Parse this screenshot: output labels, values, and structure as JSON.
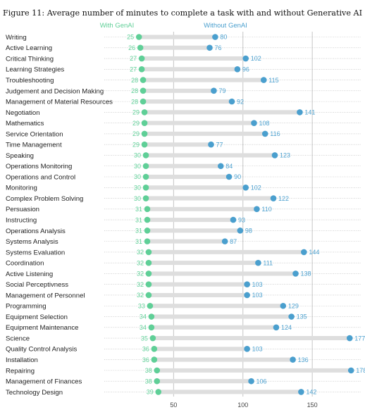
{
  "title": "Figure 11: Average number of minutes to complete a task with and without Generative AI",
  "colors": {
    "with_genai": "#5fcf97",
    "without_genai": "#4a9fce",
    "bar": "#dedede",
    "grid": "#c4c4c4"
  },
  "chart_data": {
    "type": "dumbbell",
    "title": "Figure 11: Average number of minutes to complete a task with and without Generative AI",
    "xlabel": "",
    "ylabel": "",
    "xlim": [
      0,
      185
    ],
    "xticks": [
      50,
      100,
      150
    ],
    "grid": true,
    "legend": "top",
    "categories": [
      "Writing",
      "Active Learning",
      "Critical Thinking",
      "Learning Strategies",
      "Troubleshooting",
      "Judgement and Decision Making",
      "Management of Material Resources",
      "Negotiation",
      "Mathematics",
      "Service Orientation",
      "Time Management",
      "Speaking",
      "Operations Monitoring",
      "Operations and Control",
      "Monitoring",
      "Complex Problem Solving",
      "Persuasion",
      "Instructing",
      "Operations Analysis",
      "Systems Analysis",
      "Systems Evaluation",
      "Coordination",
      "Active Listening",
      "Social Perceptivness",
      "Management of Personnel",
      "Programming",
      "Equipment Selection",
      "Equipment Maintenance",
      "Science",
      "Quality Control Analysis",
      "Installation",
      "Repairing",
      "Management of Finances",
      "Technology Design"
    ],
    "series": [
      {
        "name": "With GenAI",
        "values": [
          25,
          26,
          27,
          27,
          28,
          28,
          28,
          29,
          29,
          29,
          29,
          30,
          30,
          30,
          30,
          30,
          31,
          31,
          31,
          31,
          32,
          32,
          32,
          32,
          32,
          33,
          34,
          34,
          35,
          36,
          36,
          38,
          38,
          39
        ]
      },
      {
        "name": "Without GenAI",
        "values": [
          80,
          76,
          102,
          96,
          115,
          79,
          92,
          141,
          108,
          116,
          77,
          123,
          84,
          90,
          102,
          122,
          110,
          93,
          98,
          87,
          144,
          111,
          138,
          103,
          103,
          129,
          135,
          124,
          177,
          103,
          136,
          178,
          106,
          142
        ]
      }
    ]
  }
}
